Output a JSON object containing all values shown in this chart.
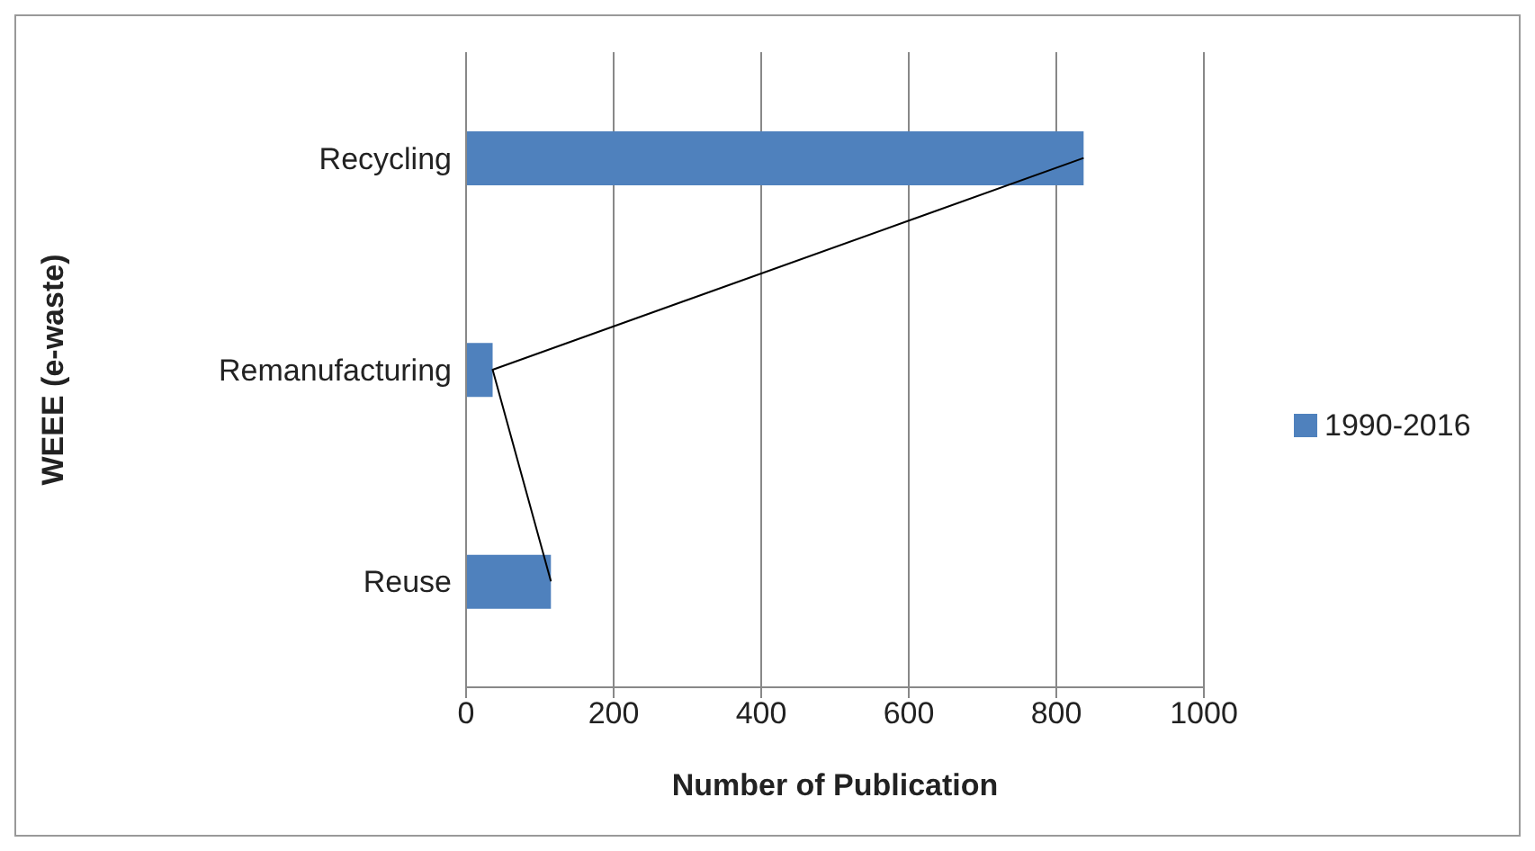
{
  "chart_data": {
    "type": "bar",
    "orientation": "horizontal",
    "xlabel": "Number of Publication",
    "ylabel": "WEEE (e-waste)",
    "categories": [
      "Recycling",
      "Remanufacturing",
      "Reuse"
    ],
    "series": [
      {
        "name": "1990-2016",
        "color": "#4f81bd",
        "values": [
          837,
          36,
          115
        ]
      },
      {
        "type": "line",
        "color": "#000000",
        "values": [
          837,
          36,
          115
        ]
      }
    ],
    "xlim": [
      0,
      1000
    ],
    "xticks": [
      0,
      200,
      400,
      600,
      800,
      1000
    ],
    "grid": "x",
    "legend": "right",
    "marker": "none"
  }
}
